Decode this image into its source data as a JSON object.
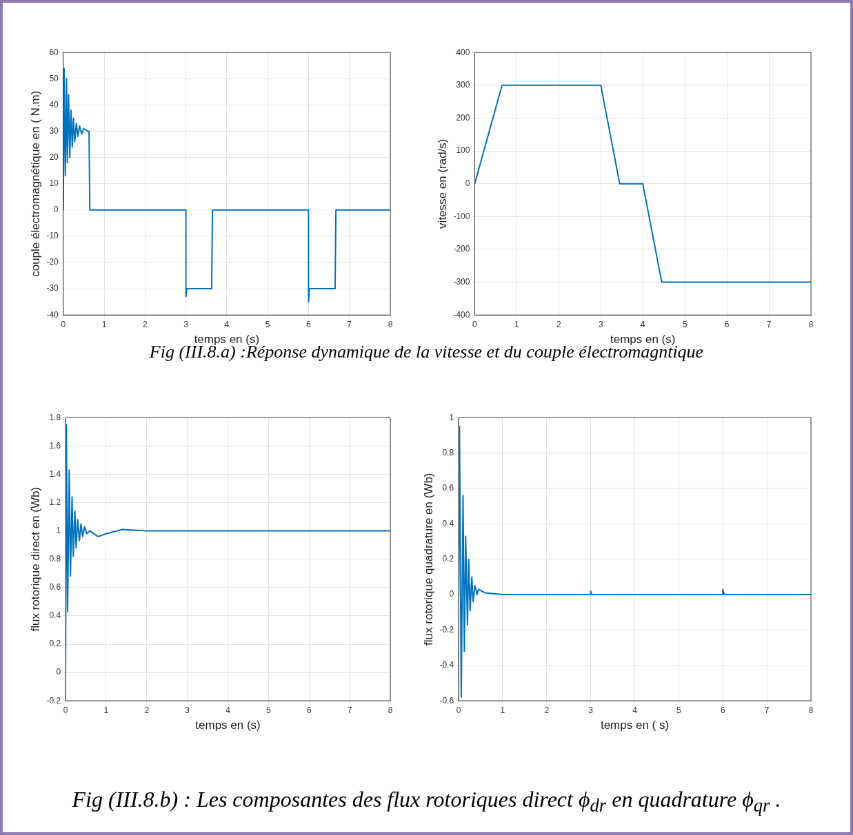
{
  "chart_data": [
    {
      "type": "line",
      "xlabel": "temps en (s)",
      "ylabel": "couple électromagnétique en ( N.m)",
      "color": "#0072bd",
      "grid": true,
      "xlim": [
        0,
        8
      ],
      "ylim": [
        -40,
        60
      ],
      "xticks": [
        0,
        1,
        2,
        3,
        4,
        5,
        6,
        7,
        8
      ],
      "yticks": [
        -40,
        -30,
        -20,
        -10,
        0,
        10,
        20,
        30,
        40,
        50,
        60
      ],
      "x": [
        0,
        0.02,
        0.05,
        0.08,
        0.1,
        0.13,
        0.16,
        0.19,
        0.22,
        0.25,
        0.28,
        0.32,
        0.36,
        0.4,
        0.45,
        0.5,
        0.6,
        0.63,
        0.65,
        3.0,
        3.0,
        3.02,
        3.63,
        3.65,
        6.0,
        6.0,
        6.02,
        6.65,
        6.67,
        8
      ],
      "values": [
        0,
        54,
        13,
        50,
        18,
        44,
        20,
        38,
        24,
        35,
        26,
        33,
        28,
        32,
        29,
        31,
        30,
        30,
        0,
        0,
        -33,
        -30,
        -30,
        0,
        0,
        -35,
        -30,
        -30,
        0,
        0
      ]
    },
    {
      "type": "line",
      "xlabel": "temps en (s)",
      "ylabel": "vitesse en (rad/s)",
      "color": "#0072bd",
      "grid": true,
      "xlim": [
        0,
        8
      ],
      "ylim": [
        -400,
        400
      ],
      "xticks": [
        0,
        1,
        2,
        3,
        4,
        5,
        6,
        7,
        8
      ],
      "yticks": [
        -400,
        -300,
        -200,
        -100,
        0,
        100,
        200,
        300,
        400
      ],
      "x": [
        0,
        0.65,
        3.0,
        3.45,
        4.0,
        4.45,
        8
      ],
      "values": [
        0,
        300,
        300,
        0,
        0,
        -300,
        -300
      ],
      "annotations": [
        "Fig (III.8.a) :Réponse dynamique de la vitesse et du couple  électromagntique"
      ]
    },
    {
      "type": "line",
      "xlabel": "temps en (s)",
      "ylabel": "flux rotorique direct en (Wb)",
      "color": "#0072bd",
      "grid": true,
      "xlim": [
        0,
        8
      ],
      "ylim": [
        -0.2,
        1.8
      ],
      "xticks": [
        0,
        1,
        2,
        3,
        4,
        5,
        6,
        7,
        8
      ],
      "yticks": [
        -0.2,
        0,
        0.2,
        0.4,
        0.6,
        0.8,
        1,
        1.2,
        1.4,
        1.6,
        1.8
      ],
      "x": [
        0,
        0.02,
        0.05,
        0.09,
        0.12,
        0.16,
        0.19,
        0.23,
        0.26,
        0.3,
        0.34,
        0.38,
        0.42,
        0.47,
        0.52,
        0.6,
        0.8,
        1.0,
        1.4,
        2,
        8
      ],
      "values": [
        0,
        1.75,
        0.43,
        1.43,
        0.68,
        1.24,
        0.82,
        1.14,
        0.88,
        1.08,
        0.93,
        1.05,
        0.96,
        1.03,
        0.98,
        1.0,
        0.96,
        0.98,
        1.01,
        1.0,
        1.0
      ]
    },
    {
      "type": "line",
      "xlabel": "temps en ( s)",
      "ylabel": "flux rotorique quadrature en (Wb)",
      "color": "#0072bd",
      "grid": true,
      "xlim": [
        0,
        8
      ],
      "ylim": [
        -0.6,
        1
      ],
      "xticks": [
        0,
        1,
        2,
        3,
        4,
        5,
        6,
        7,
        8
      ],
      "yticks": [
        -0.6,
        -0.4,
        -0.2,
        0,
        0.2,
        0.4,
        0.6,
        0.8,
        1
      ],
      "x": [
        0,
        0.02,
        0.06,
        0.1,
        0.13,
        0.16,
        0.2,
        0.23,
        0.26,
        0.3,
        0.33,
        0.37,
        0.42,
        0.45,
        0.6,
        1,
        3,
        3,
        3.02,
        6,
        6,
        6.03,
        8
      ],
      "values": [
        0,
        0.95,
        -0.58,
        0.56,
        -0.32,
        0.33,
        -0.17,
        0.2,
        -0.09,
        0.1,
        -0.04,
        0.05,
        0,
        0.03,
        0.01,
        0,
        0,
        0.02,
        0,
        0,
        0.03,
        0,
        0
      ],
      "annotations": [
        "Fig (III.8.b) : Les composantes des flux rotoriques direct ϕ$_{dr}$ en quadrature ϕ$_{qr}$ ."
      ]
    }
  ]
}
